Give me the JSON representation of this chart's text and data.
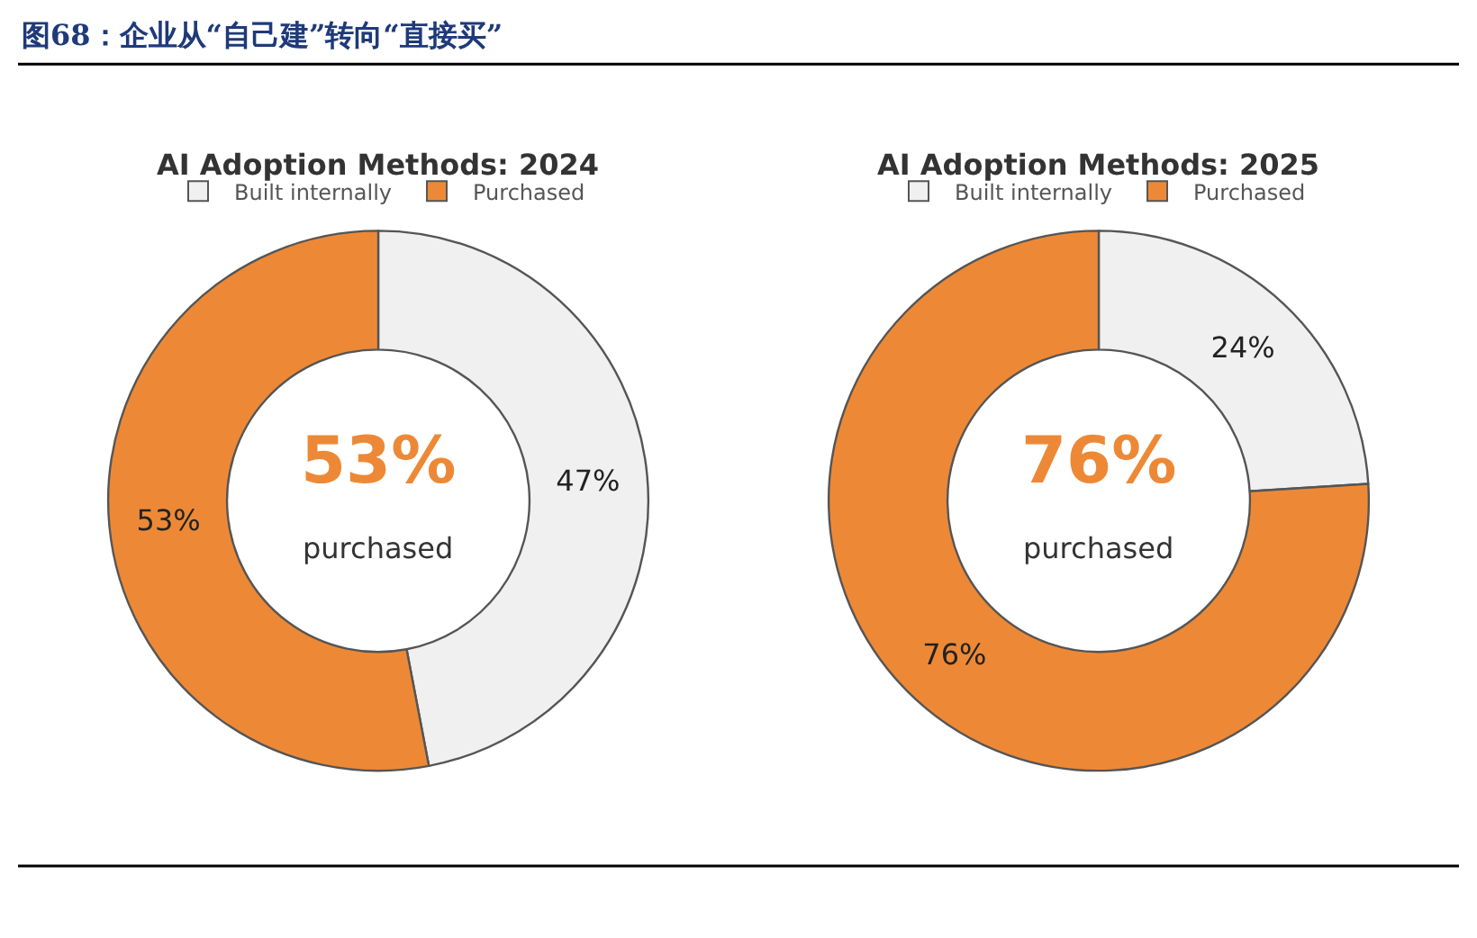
{
  "chart_data": [
    {
      "type": "donut",
      "title": "AI Adoption Methods: 2024",
      "categories": [
        "Built internally",
        "Purchased"
      ],
      "values": [
        47,
        53
      ],
      "colors": [
        "#f0f0f0",
        "#ed8936"
      ],
      "value_labels": [
        "47%",
        "53%"
      ],
      "legend": "top",
      "annotations": [
        "图68：企业从“自己建”转向“直接买”",
        "53%",
        "purchased"
      ]
    },
    {
      "type": "donut",
      "title": "AI Adoption Methods: 2025",
      "categories": [
        "Built internally",
        "Purchased"
      ],
      "values": [
        24,
        76
      ],
      "colors": [
        "#f0f0f0",
        "#ed8936"
      ],
      "value_labels": [
        "24%",
        "76%"
      ],
      "legend": "top",
      "annotations": [
        "76%",
        "purchased"
      ]
    }
  ]
}
